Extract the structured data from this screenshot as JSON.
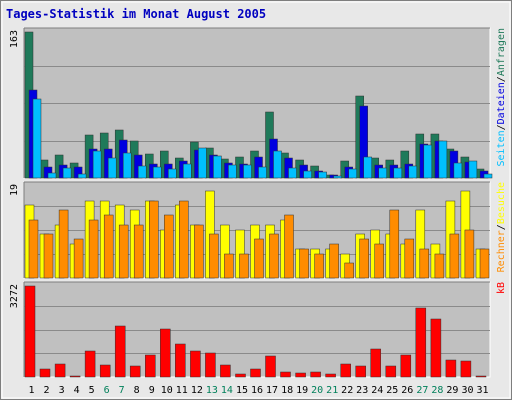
{
  "chart_data": {
    "type": "bar",
    "title": "Tages-Statistik im Monat August 2005",
    "colors": {
      "page_bg": "#E8E8E8",
      "plot_bg": "#C0C0C0",
      "border": "#7E7E7E",
      "gridline": "#8A8A8A",
      "title": "#0000C0",
      "anfragen": "#1F7A5A",
      "dateien": "#0000E0",
      "seiten": "#00BFFF",
      "besuche": "#FFFF00",
      "rechner": "#FF8C00",
      "kb": "#FF0000",
      "weekend_label": "#00805A",
      "weekday_label": "#000000"
    },
    "x_labels": [
      "1",
      "2",
      "3",
      "4",
      "5",
      "6",
      "7",
      "8",
      "9",
      "10",
      "11",
      "12",
      "13",
      "14",
      "15",
      "16",
      "17",
      "18",
      "19",
      "20",
      "21",
      "22",
      "23",
      "24",
      "25",
      "26",
      "27",
      "28",
      "29",
      "30",
      "31"
    ],
    "weekend_days": [
      6,
      7,
      13,
      14,
      20,
      21,
      27,
      28
    ],
    "panels": [
      {
        "id": "requests",
        "ymax_label": "163",
        "ymax": 163,
        "series": [
          {
            "key": "anfragen",
            "legend": "Anfragen",
            "color": "#1F7A5A",
            "values": [
              163,
              20,
              26,
              17,
              48,
              50,
              54,
              41,
              27,
              30,
              22,
              40,
              34,
              21,
              24,
              30,
              74,
              28,
              20,
              13,
              3,
              19,
              92,
              22,
              20,
              30,
              49,
              49,
              32,
              24,
              10
            ]
          },
          {
            "key": "dateien",
            "legend": "Dateien",
            "color": "#0000E0",
            "values": [
              98,
              12,
              14,
              12,
              32,
              32,
              42,
              26,
              16,
              16,
              19,
              31,
              26,
              17,
              16,
              24,
              44,
              22,
              15,
              8,
              3,
              12,
              80,
              15,
              14,
              16,
              38,
              41,
              30,
              18,
              8
            ]
          },
          {
            "key": "seiten",
            "legend": "Seiten",
            "color": "#00BFFF",
            "values": [
              88,
              6,
              11,
              4,
              30,
              22,
              28,
              13,
              12,
              10,
              16,
              33,
              25,
              15,
              14,
              12,
              30,
              11,
              8,
              7,
              2,
              10,
              24,
              11,
              11,
              13,
              37,
              41,
              17,
              19,
              5
            ]
          }
        ]
      },
      {
        "id": "visits",
        "ymax_label": "19",
        "ymax": 19,
        "series": [
          {
            "key": "besuche",
            "legend": "Besuche",
            "color": "#FFFF00",
            "values": [
              15,
              9,
              11,
              7,
              16,
              16,
              15,
              14,
              16,
              10,
              15,
              11,
              18,
              11,
              10,
              11,
              11,
              12,
              6,
              6,
              6,
              5,
              9,
              10,
              9,
              7,
              14,
              7,
              16,
              18,
              6
            ]
          },
          {
            "key": "rechner",
            "legend": "Rechner",
            "color": "#FF8C00",
            "values": [
              12,
              9,
              14,
              8,
              12,
              13,
              11,
              11,
              16,
              13,
              16,
              11,
              9,
              5,
              5,
              8,
              9,
              13,
              6,
              5,
              7,
              3,
              8,
              7,
              14,
              8,
              6,
              5,
              9,
              10,
              6
            ]
          }
        ]
      },
      {
        "id": "kb",
        "ymax_label": "3272",
        "ymax": 3272,
        "series": [
          {
            "key": "kb",
            "legend": "kB",
            "color": "#FF0000",
            "values": [
              3272,
              300,
              450,
              40,
              930,
              430,
              1840,
              380,
              780,
              1720,
              1180,
              950,
              860,
              420,
              120,
              280,
              740,
              180,
              160,
              170,
              100,
              460,
              380,
              1000,
              400,
              780,
              2490,
              2080,
              600,
              560,
              40
            ]
          }
        ]
      }
    ],
    "legend_separator": "/"
  }
}
